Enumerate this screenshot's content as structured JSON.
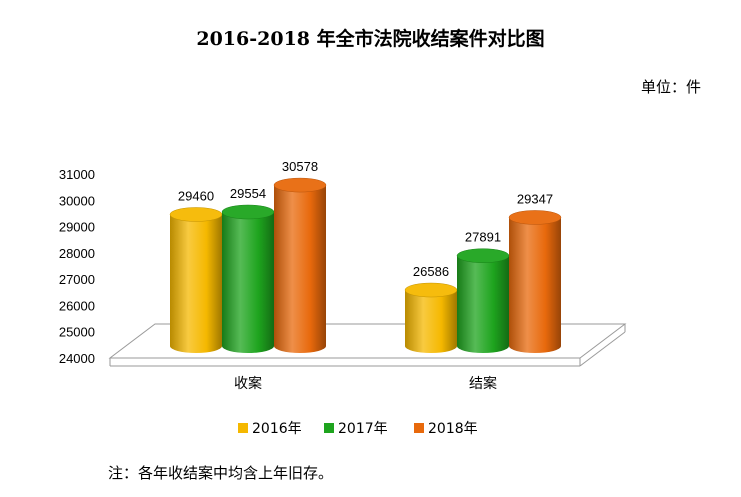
{
  "chart_data": {
    "type": "bar",
    "title": "2016-2018 年全市法院收结案件对比图",
    "unit_label": "单位：件",
    "categories": [
      "收案",
      "结案"
    ],
    "series": [
      {
        "name": "2016年",
        "color": "#F5B800",
        "values": [
          29460,
          26586
        ]
      },
      {
        "name": "2017年",
        "color": "#1EA41E",
        "values": [
          29554,
          27891
        ]
      },
      {
        "name": "2018年",
        "color": "#E8690C",
        "values": [
          30578,
          29347
        ]
      }
    ],
    "y_ticks": [
      24000,
      25000,
      26000,
      27000,
      28000,
      29000,
      30000,
      31000
    ],
    "ylim": [
      24000,
      31000
    ],
    "grid": false,
    "legend_position": "bottom",
    "style": "3d-cylinder",
    "footnote": "注：各年收结案中均含上年旧存。"
  }
}
